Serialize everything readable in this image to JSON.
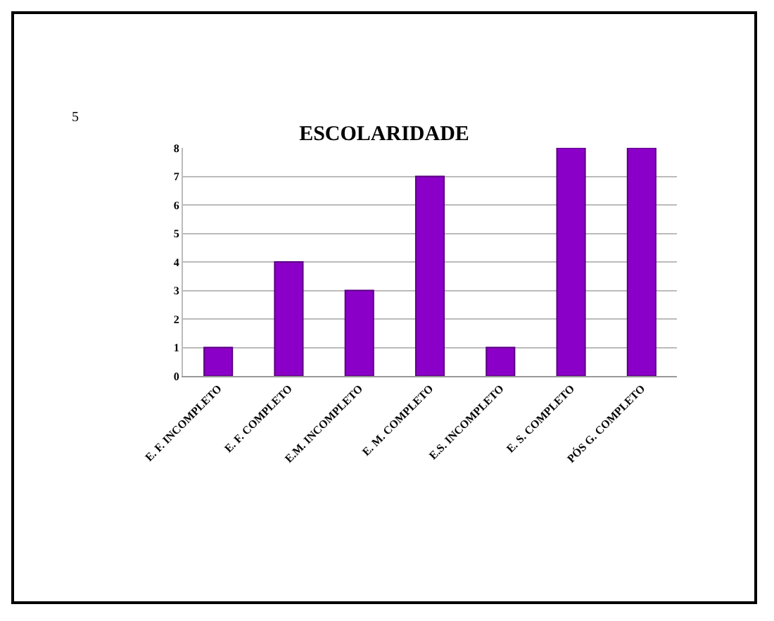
{
  "chart_data": {
    "type": "bar",
    "title": "ESCOLARIDADE",
    "categories": [
      "E. F. INCOMPLETO",
      "E. F. COMPLETO",
      "E.M. INCOMPLETO",
      "E. M. COMPLETO",
      "E.S. INCOMPLETO",
      "E. S. COMPLETO",
      "PÓS G. COMPLETO"
    ],
    "values": [
      1,
      4,
      3,
      7,
      1,
      8,
      8
    ],
    "color": "#8b00c8",
    "ylim": [
      0,
      8
    ],
    "yticks": [
      0,
      1,
      2,
      3,
      4,
      5,
      6,
      7,
      8
    ],
    "grid": "y",
    "annotations": [
      "5"
    ]
  }
}
